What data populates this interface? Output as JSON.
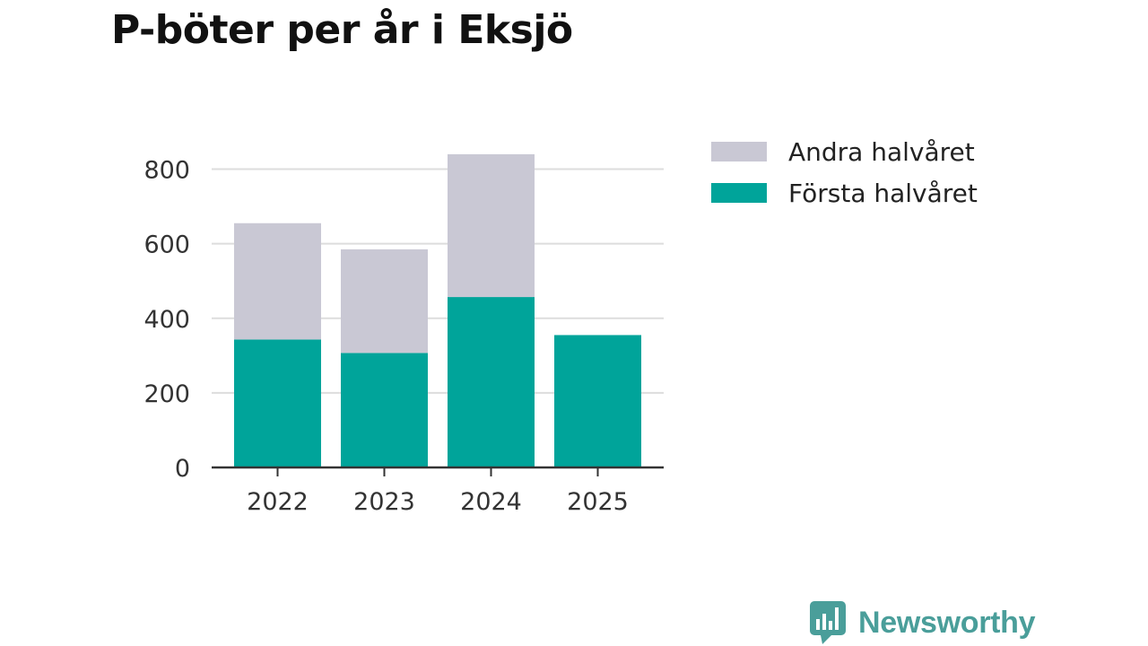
{
  "colors": {
    "first_half": "#00a49a",
    "second_half": "#c9c8d4",
    "brand": "#4a9e9a"
  },
  "logo": {
    "text": "Newsworthy",
    "icon": "bar-chart-speech-bubble-icon"
  },
  "chart_data": {
    "type": "bar",
    "stacked": true,
    "title": "P-böter per år i Eksjö",
    "xlabel": "",
    "ylabel": "",
    "categories": [
      "2022",
      "2023",
      "2024",
      "2025"
    ],
    "series": [
      {
        "name": "Första halvåret",
        "values": [
          343,
          307,
          457,
          355
        ],
        "color": "#00a49a"
      },
      {
        "name": "Andra halvåret",
        "values": [
          312,
          278,
          383,
          0
        ],
        "color": "#c9c8d4"
      }
    ],
    "yticks": [
      "0",
      "200",
      "400",
      "600",
      "800"
    ],
    "ylim": [
      0,
      800
    ],
    "grid": true,
    "legend": [
      "Andra halvåret",
      "Första halvåret"
    ]
  }
}
